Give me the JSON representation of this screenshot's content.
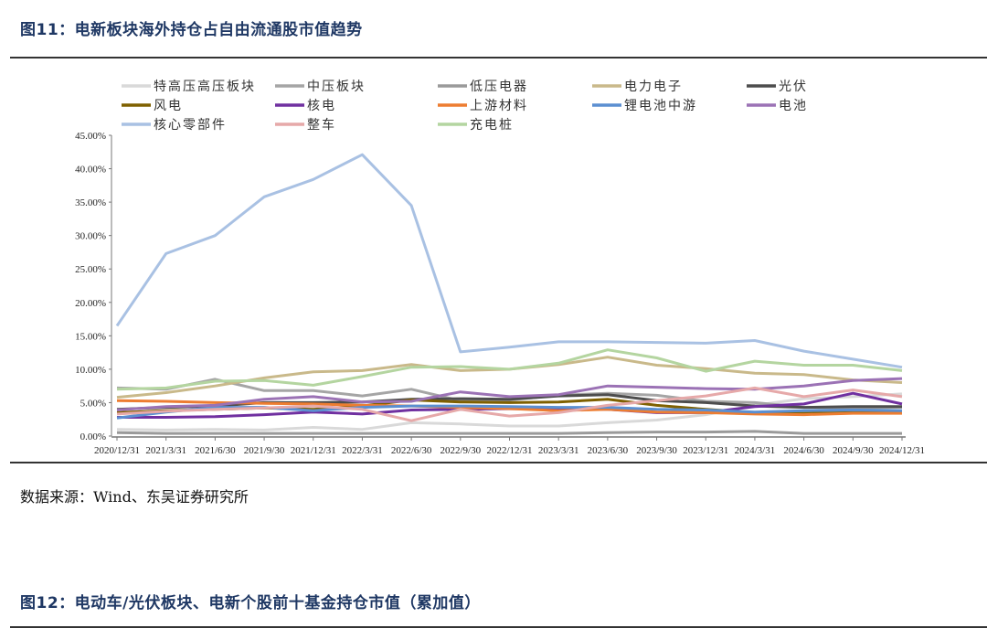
{
  "figure11": {
    "title": "图11：电新板块海外持仓占自由流通股市值趋势",
    "source": "数据来源：Wind、东吴证券研究所"
  },
  "figure12": {
    "title": "图12：电动车/光伏板块、电新个股前十基金持仓市值（累加值）"
  },
  "chart_data": {
    "type": "line",
    "title": "电新板块海外持仓占自由流通股市值趋势",
    "xlabel": "",
    "ylabel": "",
    "ylim": [
      0,
      45
    ],
    "yticks": [
      "0.00%",
      "5.00%",
      "10.00%",
      "15.00%",
      "20.00%",
      "25.00%",
      "30.00%",
      "35.00%",
      "40.00%",
      "45.00%"
    ],
    "grid": false,
    "legend_position": "top",
    "categories": [
      "2020/12/31",
      "2021/3/31",
      "2021/6/30",
      "2021/9/30",
      "2021/12/31",
      "2022/3/31",
      "2022/6/30",
      "2022/9/30",
      "2022/12/31",
      "2023/3/31",
      "2023/6/30",
      "2023/9/30",
      "2023/12/31",
      "2024/3/31",
      "2024/6/30",
      "2024/9/30",
      "2024/12/31"
    ],
    "series": [
      {
        "name": "特高压高压板块",
        "color": "#d9d9d9",
        "values": [
          1.0,
          0.9,
          1.0,
          0.9,
          1.3,
          1.0,
          2.0,
          1.8,
          1.5,
          1.5,
          2.0,
          2.4,
          3.2,
          4.6,
          5.6,
          5.9,
          6.3
        ]
      },
      {
        "name": "中压板块",
        "color": "#a5a5a5",
        "values": [
          7.2,
          7.0,
          8.5,
          6.8,
          6.8,
          6.0,
          7.0,
          5.3,
          5.4,
          6.1,
          6.4,
          6.1,
          5.2,
          5.0,
          4.3,
          4.2,
          4.3
        ]
      },
      {
        "name": "低压电器",
        "color": "#9a9a9a",
        "values": [
          0.5,
          0.4,
          0.4,
          0.4,
          0.4,
          0.4,
          0.4,
          0.4,
          0.4,
          0.4,
          0.5,
          0.6,
          0.6,
          0.7,
          0.4,
          0.4,
          0.4
        ]
      },
      {
        "name": "电力电子",
        "color": "#c9b98a",
        "values": [
          5.8,
          6.5,
          7.5,
          8.7,
          9.6,
          9.8,
          10.7,
          9.8,
          10.0,
          10.7,
          11.8,
          10.6,
          10.1,
          9.4,
          9.2,
          8.4,
          8.0
        ]
      },
      {
        "name": "光伏",
        "color": "#4d4d4d",
        "values": [
          4.0,
          4.3,
          4.5,
          5.0,
          5.0,
          5.1,
          5.5,
          5.6,
          5.5,
          6.0,
          6.2,
          5.3,
          5.0,
          4.5,
          4.3,
          4.4,
          4.4
        ]
      },
      {
        "name": "风电",
        "color": "#7f6000",
        "values": [
          3.5,
          3.8,
          4.0,
          4.2,
          4.0,
          4.5,
          5.4,
          5.1,
          5.0,
          5.1,
          5.5,
          4.6,
          4.0,
          3.5,
          3.4,
          3.5,
          3.5
        ]
      },
      {
        "name": "核电",
        "color": "#7030a0",
        "values": [
          2.8,
          2.8,
          2.9,
          3.2,
          3.6,
          3.3,
          3.9,
          4.0,
          4.1,
          4.0,
          4.0,
          3.5,
          3.5,
          4.4,
          4.8,
          6.4,
          4.8
        ]
      },
      {
        "name": "上游材料",
        "color": "#ed7d31",
        "values": [
          5.3,
          5.2,
          5.0,
          4.9,
          4.8,
          4.6,
          4.5,
          4.3,
          4.1,
          3.8,
          4.0,
          3.6,
          3.5,
          3.3,
          3.2,
          3.4,
          3.4
        ]
      },
      {
        "name": "锂电池中游",
        "color": "#5b8fd1",
        "values": [
          2.7,
          3.6,
          4.3,
          4.3,
          3.8,
          4.3,
          4.5,
          4.5,
          4.4,
          4.3,
          4.3,
          4.0,
          3.9,
          3.6,
          3.8,
          3.9,
          3.8
        ]
      },
      {
        "name": "电池",
        "color": "#9b72b5",
        "values": [
          3.9,
          4.4,
          4.6,
          5.5,
          5.9,
          5.1,
          5.2,
          6.6,
          5.9,
          6.2,
          7.5,
          7.3,
          7.1,
          7.0,
          7.5,
          8.3,
          8.6
        ]
      },
      {
        "name": "核心零部件",
        "color": "#a9c1e3",
        "values": [
          16.5,
          27.3,
          30.0,
          35.8,
          38.4,
          42.1,
          34.5,
          12.6,
          13.3,
          14.1,
          14.1,
          14.0,
          13.9,
          14.3,
          12.7,
          11.5,
          10.3
        ]
      },
      {
        "name": "整车",
        "color": "#e6a9a9",
        "values": [
          3.3,
          3.7,
          4.0,
          4.2,
          4.5,
          4.0,
          2.3,
          4.0,
          3.0,
          3.5,
          4.6,
          5.3,
          6.0,
          7.2,
          5.9,
          6.9,
          5.9
        ]
      },
      {
        "name": "充电桩",
        "color": "#b4d5a0",
        "values": [
          7.0,
          7.2,
          8.2,
          8.3,
          7.6,
          8.9,
          10.3,
          10.4,
          10.0,
          10.9,
          12.9,
          11.7,
          9.7,
          11.2,
          10.6,
          10.6,
          9.8
        ]
      }
    ]
  }
}
